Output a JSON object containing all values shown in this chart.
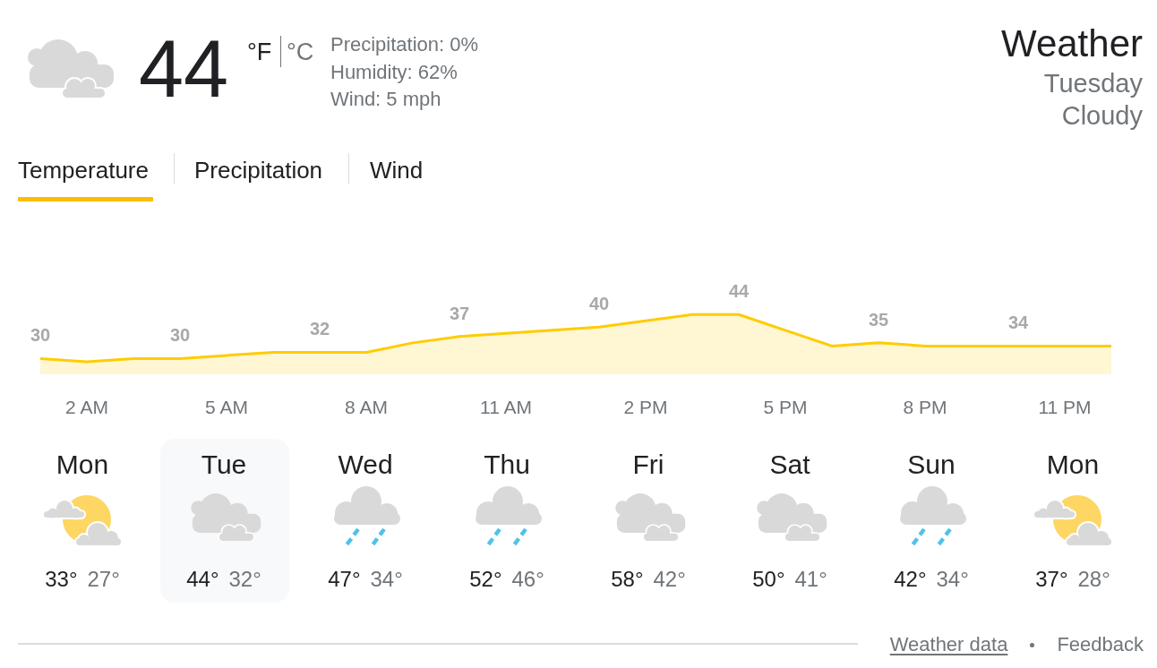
{
  "chart_data": [
    {
      "type": "other",
      "title": "Weather",
      "subtitle": "Tuesday",
      "annotations": [
        "44",
        "°F",
        "°C",
        "Precipitation: 0%",
        "Humidity: 62%",
        "Wind: 5 mph",
        "Cloudy",
        "Temperature",
        "Precipitation",
        "Wind"
      ]
    },
    {
      "type": "area",
      "categories": [
        null,
        "2 AM",
        null,
        null,
        "5 AM",
        null,
        null,
        "8 AM",
        null,
        null,
        "11 AM",
        null,
        null,
        "2 PM",
        null,
        null,
        "5 PM",
        null,
        null,
        "8 PM",
        null,
        null,
        "11 PM",
        null
      ],
      "values": [
        30,
        29,
        30,
        30,
        31,
        32,
        32,
        32,
        35,
        37,
        38,
        39,
        40,
        42,
        44,
        44,
        39,
        34,
        35,
        34,
        34,
        34,
        34,
        34
      ],
      "value_labels": [
        "30",
        null,
        null,
        "30",
        null,
        null,
        "32",
        null,
        null,
        "37",
        null,
        null,
        "40",
        null,
        null,
        "44",
        null,
        null,
        "35",
        null,
        null,
        "34",
        null,
        null
      ],
      "color": "#ffcc00",
      "tick_labels": "x"
    },
    {
      "type": "other",
      "annotations": [
        "Mon",
        "33°",
        "27°",
        "Tue",
        "44°",
        "32°",
        "Wed",
        "47°",
        "34°",
        "Thu",
        "52°",
        "46°",
        "Fri",
        "58°",
        "42°",
        "Sat",
        "50°",
        "41°",
        "Sun",
        "42°",
        "34°",
        "Mon",
        "37°",
        "28°",
        "Weather data",
        "Feedback"
      ]
    }
  ]
}
